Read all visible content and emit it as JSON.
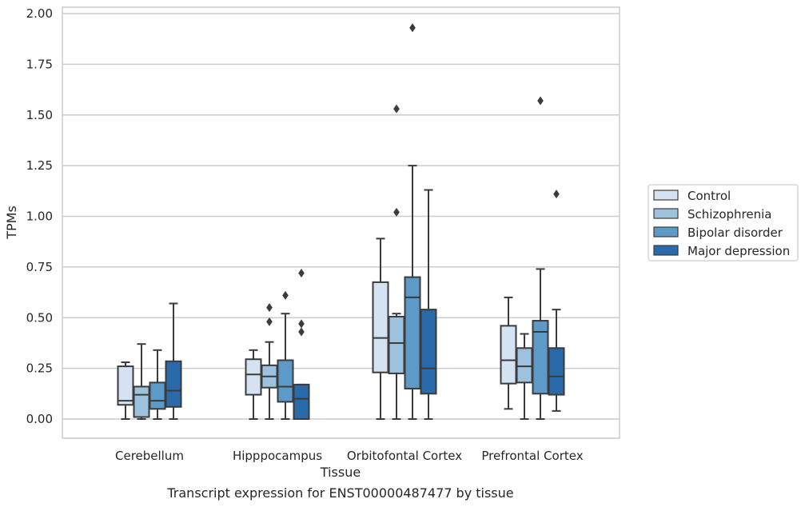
{
  "chart_data": {
    "type": "box",
    "title": "Transcript expression for ENST00000487477 by tissue",
    "xlabel": "Tissue",
    "ylabel": "TPMs",
    "ylim": [
      -0.09,
      2.03
    ],
    "yticks": [
      "0.00",
      "0.25",
      "0.50",
      "0.75",
      "1.00",
      "1.25",
      "1.50",
      "1.75",
      "2.00"
    ],
    "grid": "horizontal",
    "legend_position": "right",
    "categories": [
      "Cerebellum",
      "Hipppocampus",
      "Orbitofontal Cortex",
      "Prefrontal Cortex"
    ],
    "series": [
      {
        "name": "Control",
        "color": "#d4e2f1",
        "boxes": [
          {
            "whislo": 0.0,
            "q1": 0.07,
            "med": 0.09,
            "q3": 0.26,
            "whishi": 0.28,
            "fliers": []
          },
          {
            "whislo": 0.0,
            "q1": 0.12,
            "med": 0.22,
            "q3": 0.295,
            "whishi": 0.34,
            "fliers": []
          },
          {
            "whislo": 0.0,
            "q1": 0.23,
            "med": 0.4,
            "q3": 0.675,
            "whishi": 0.89,
            "fliers": []
          },
          {
            "whislo": 0.05,
            "q1": 0.175,
            "med": 0.29,
            "q3": 0.46,
            "whishi": 0.6,
            "fliers": []
          }
        ]
      },
      {
        "name": "Schizophrenia",
        "color": "#9cc2dd",
        "boxes": [
          {
            "whislo": 0.0,
            "q1": 0.01,
            "med": 0.12,
            "q3": 0.16,
            "whishi": 0.37,
            "fliers": []
          },
          {
            "whislo": 0.0,
            "q1": 0.155,
            "med": 0.21,
            "q3": 0.265,
            "whishi": 0.38,
            "fliers": [
              0.48,
              0.55
            ]
          },
          {
            "whislo": 0.0,
            "q1": 0.225,
            "med": 0.375,
            "q3": 0.505,
            "whishi": 0.52,
            "fliers": [
              1.02,
              1.53
            ]
          },
          {
            "whislo": 0.0,
            "q1": 0.18,
            "med": 0.26,
            "q3": 0.35,
            "whishi": 0.42,
            "fliers": []
          }
        ]
      },
      {
        "name": "Bipolar disorder",
        "color": "#5d9ac8",
        "boxes": [
          {
            "whislo": 0.0,
            "q1": 0.05,
            "med": 0.09,
            "q3": 0.18,
            "whishi": 0.34,
            "fliers": []
          },
          {
            "whislo": 0.0,
            "q1": 0.085,
            "med": 0.16,
            "q3": 0.29,
            "whishi": 0.52,
            "fliers": [
              0.61
            ]
          },
          {
            "whislo": 0.0,
            "q1": 0.15,
            "med": 0.6,
            "q3": 0.7,
            "whishi": 1.25,
            "fliers": [
              1.93
            ]
          },
          {
            "whislo": 0.0,
            "q1": 0.125,
            "med": 0.43,
            "q3": 0.485,
            "whishi": 0.74,
            "fliers": [
              1.57
            ]
          }
        ]
      },
      {
        "name": "Major depression",
        "color": "#2b6aa8",
        "boxes": [
          {
            "whislo": 0.0,
            "q1": 0.06,
            "med": 0.14,
            "q3": 0.285,
            "whishi": 0.57,
            "fliers": []
          },
          {
            "whislo": 0.0,
            "q1": 0.0,
            "med": 0.1,
            "q3": 0.17,
            "whishi": 0.17,
            "fliers": [
              0.43,
              0.47,
              0.72
            ]
          },
          {
            "whislo": 0.0,
            "q1": 0.125,
            "med": 0.25,
            "q3": 0.54,
            "whishi": 1.13,
            "fliers": []
          },
          {
            "whislo": 0.04,
            "q1": 0.12,
            "med": 0.21,
            "q3": 0.35,
            "whishi": 0.54,
            "fliers": [
              1.11
            ]
          }
        ]
      }
    ]
  }
}
